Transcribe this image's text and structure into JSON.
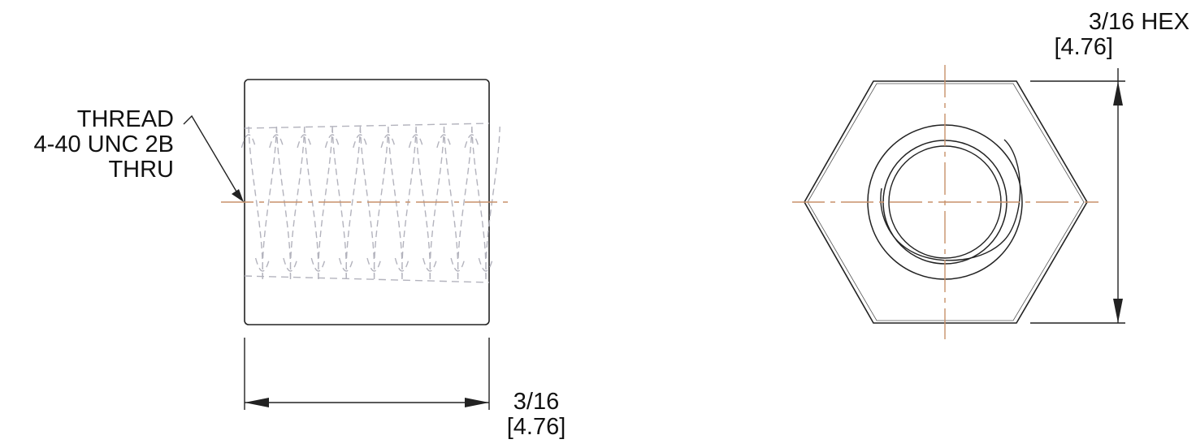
{
  "colors": {
    "outline": "#222222",
    "hidden_thread": "#b3b3bd",
    "centerline": "#c8916a",
    "text": "#111111"
  },
  "views": {
    "side_view": {
      "thread_callout": {
        "line1": "THREAD",
        "line2": "4-40 UNC 2B",
        "line3": "THRU"
      },
      "length_dimension": {
        "imperial": "3/16",
        "metric": "[4.76]"
      }
    },
    "end_view": {
      "hex_dimension": {
        "imperial": "3/16 HEX",
        "metric": "[4.76]"
      }
    }
  }
}
